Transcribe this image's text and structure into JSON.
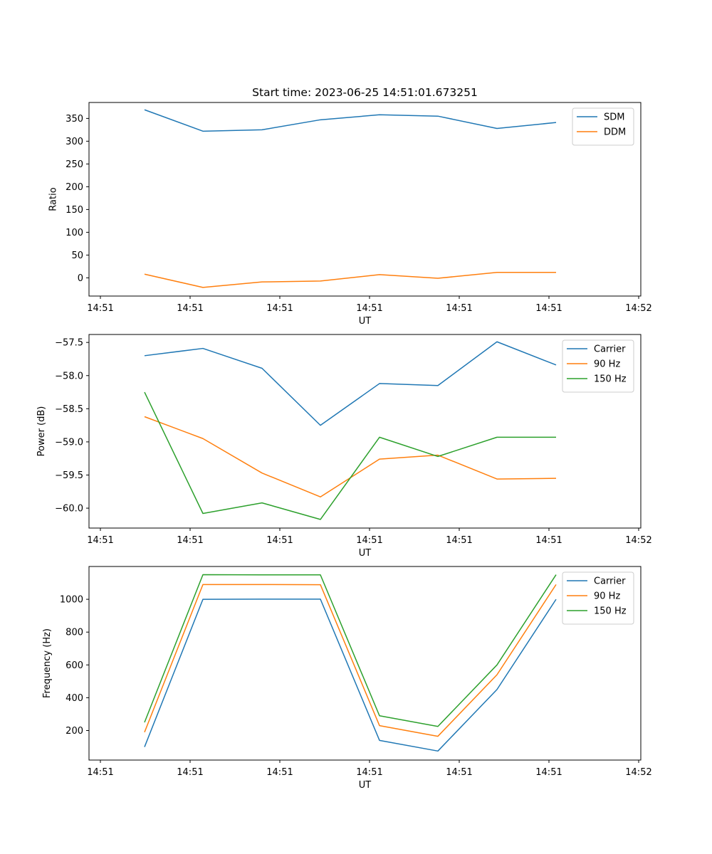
{
  "chart_data": [
    {
      "type": "line",
      "title": "Start time: 2023-06-25 14:51:01.673251",
      "xlabel": "UT",
      "ylabel": "Ratio",
      "x_tick_labels": [
        "14:51",
        "14:51",
        "14:51",
        "14:51",
        "14:51",
        "14:51",
        "14:52"
      ],
      "y_ticks": [
        0,
        50,
        100,
        150,
        200,
        250,
        300,
        350
      ],
      "y_tick_labels": [
        "0",
        "50",
        "100",
        "150",
        "200",
        "250",
        "300",
        "350"
      ],
      "ylim": [
        -40,
        385
      ],
      "legend_position": "top-right",
      "grid": false,
      "series": [
        {
          "name": "SDM",
          "color": "#1f77b4",
          "values": [
            369,
            322,
            325,
            347,
            358,
            355,
            328,
            341
          ]
        },
        {
          "name": "DDM",
          "color": "#ff7f0e",
          "values": [
            8,
            -21,
            -9,
            -7,
            7,
            -1,
            12,
            12
          ]
        }
      ]
    },
    {
      "type": "line",
      "title": "",
      "xlabel": "UT",
      "ylabel": "Power (dB)",
      "x_tick_labels": [
        "14:51",
        "14:51",
        "14:51",
        "14:51",
        "14:51",
        "14:51",
        "14:52"
      ],
      "y_ticks": [
        -60.0,
        -59.5,
        -59.0,
        -58.5,
        -58.0,
        -57.5
      ],
      "y_tick_labels": [
        "−60.0",
        "−59.5",
        "−59.0",
        "−58.5",
        "−58.0",
        "−57.5"
      ],
      "ylim": [
        -60.3,
        -57.38
      ],
      "legend_position": "top-right",
      "grid": false,
      "series": [
        {
          "name": "Carrier",
          "color": "#1f77b4",
          "values": [
            -57.7,
            -57.59,
            -57.89,
            -58.75,
            -58.12,
            -58.15,
            -57.49,
            -57.84
          ]
        },
        {
          "name": "90 Hz",
          "color": "#ff7f0e",
          "values": [
            -58.62,
            -58.95,
            -59.47,
            -59.83,
            -59.26,
            -59.2,
            -59.56,
            -59.55
          ]
        },
        {
          "name": "150 Hz",
          "color": "#2ca02c",
          "values": [
            -58.25,
            -60.08,
            -59.92,
            -60.17,
            -58.93,
            -59.22,
            -58.93,
            -58.93
          ]
        }
      ]
    },
    {
      "type": "line",
      "title": "",
      "xlabel": "UT",
      "ylabel": "Frequency (Hz)",
      "x_tick_labels": [
        "14:51",
        "14:51",
        "14:51",
        "14:51",
        "14:51",
        "14:51",
        "14:52"
      ],
      "y_ticks": [
        200,
        400,
        600,
        800,
        1000
      ],
      "y_tick_labels": [
        "200",
        "400",
        "600",
        "800",
        "1000"
      ],
      "ylim": [
        20,
        1200
      ],
      "legend_position": "top-right",
      "grid": false,
      "series": [
        {
          "name": "Carrier",
          "color": "#1f77b4",
          "values": [
            100,
            1000,
            1001,
            1001,
            140,
            75,
            450,
            1000
          ]
        },
        {
          "name": "90 Hz",
          "color": "#ff7f0e",
          "values": [
            190,
            1090,
            1090,
            1089,
            230,
            165,
            540,
            1090
          ]
        },
        {
          "name": "150 Hz",
          "color": "#2ca02c",
          "values": [
            250,
            1150,
            1149,
            1149,
            290,
            225,
            600,
            1150
          ]
        }
      ]
    }
  ]
}
